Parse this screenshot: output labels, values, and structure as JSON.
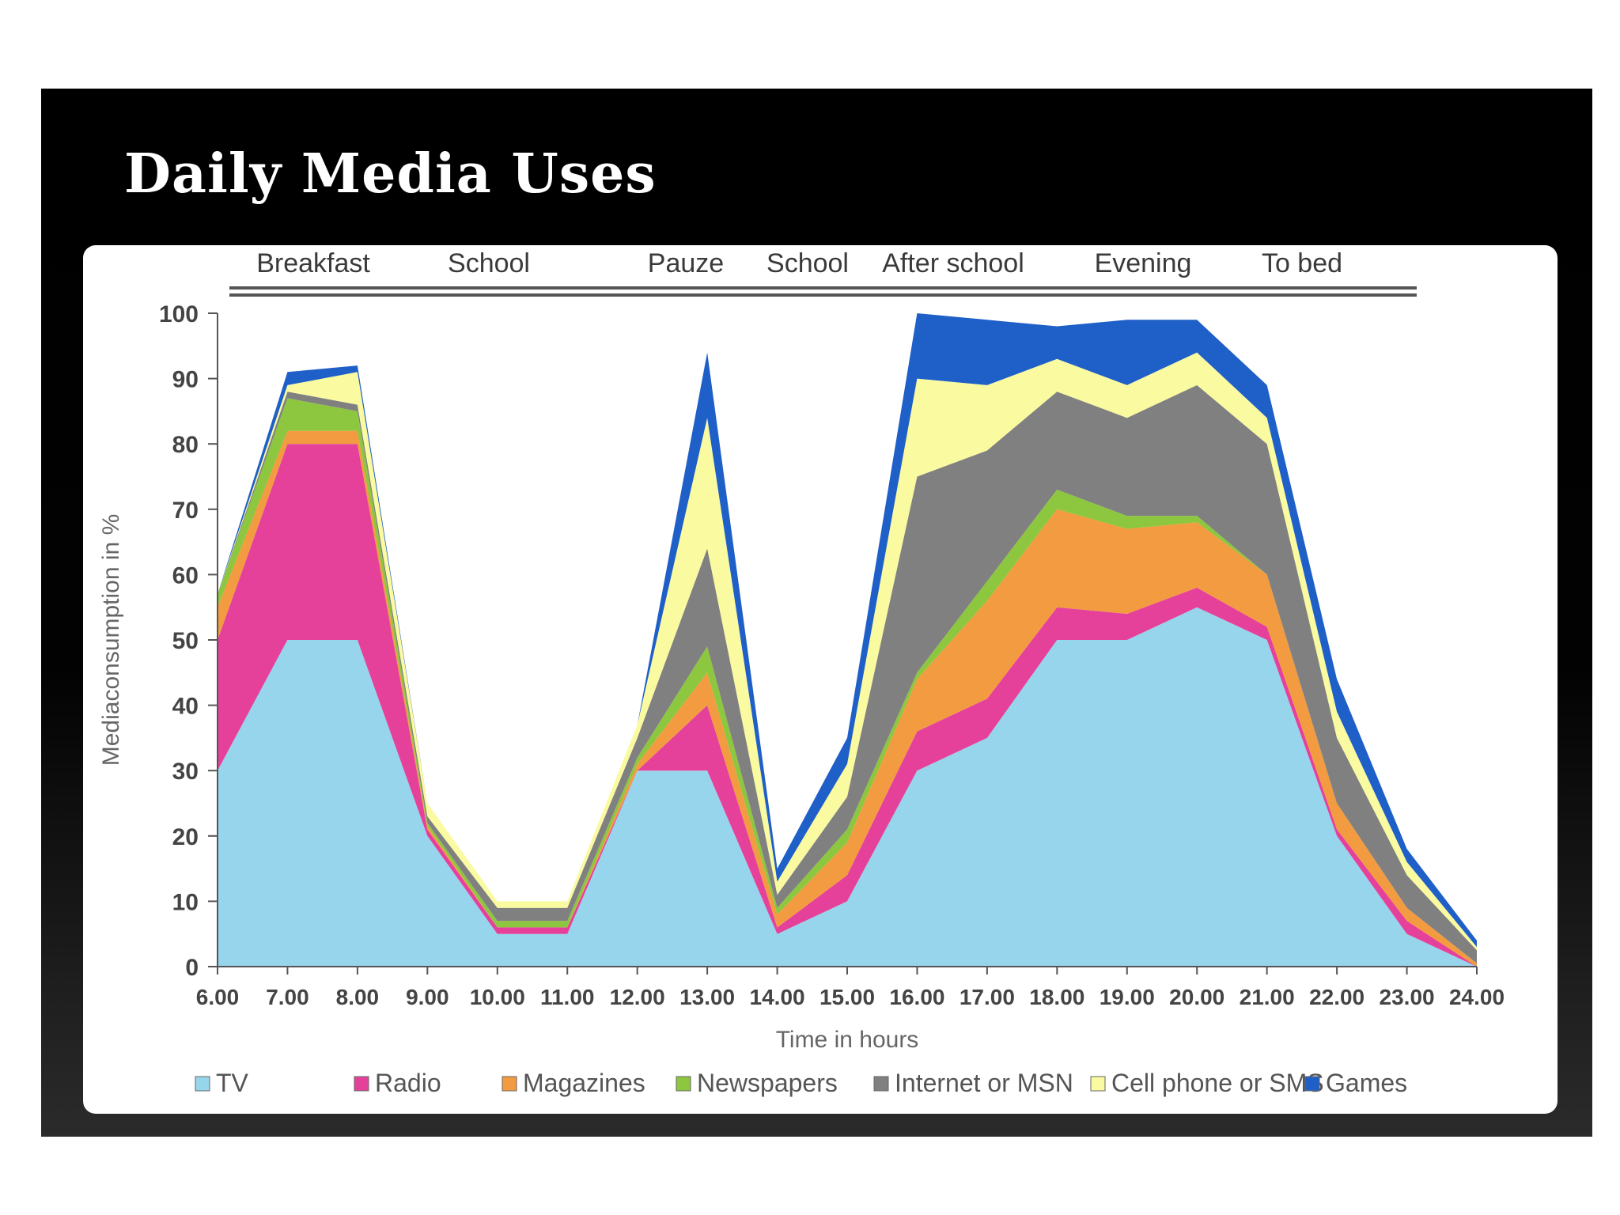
{
  "slide": {
    "title": "Daily Media Uses"
  },
  "colors": {
    "TV": "#97D5EC",
    "Radio": "#E5419A",
    "Magazines": "#F29B40",
    "Newspapers": "#8DC63F",
    "Internet or MSN": "#808080",
    "Cell phone or SMS": "#FAFAA0",
    "Games": "#1F5FC8"
  },
  "chart_data": {
    "type": "area",
    "stacked": true,
    "title": "",
    "xlabel": "Time in hours",
    "ylabel": "Mediaconsumption in %",
    "ylim": [
      0,
      100
    ],
    "yticks": [
      0,
      10,
      20,
      30,
      40,
      50,
      60,
      70,
      80,
      90,
      100
    ],
    "categories": [
      "6.00",
      "7.00",
      "8.00",
      "9.00",
      "10.00",
      "11.00",
      "12.00",
      "13.00",
      "14.00",
      "15.00",
      "16.00",
      "17.00",
      "18.00",
      "19.00",
      "20.00",
      "21.00",
      "22.00",
      "23.00",
      "24.00"
    ],
    "day_phases": [
      "Breakfast",
      "School",
      "Pauze",
      "School",
      "After school",
      "Evening",
      "To bed"
    ],
    "legend_position": "bottom",
    "series": [
      {
        "name": "TV",
        "values": [
          30,
          50,
          50,
          20,
          5,
          5,
          30,
          30,
          5,
          10,
          30,
          35,
          50,
          50,
          55,
          50,
          20,
          5,
          0
        ]
      },
      {
        "name": "Radio",
        "values": [
          20,
          30,
          30,
          1,
          1,
          1,
          0,
          10,
          1,
          4,
          6,
          6,
          5,
          4,
          3,
          2,
          1,
          2,
          0
        ]
      },
      {
        "name": "Magazines",
        "values": [
          5,
          2,
          2,
          0.5,
          0,
          0,
          1,
          5,
          2,
          5,
          8,
          15,
          15,
          13,
          10,
          8,
          4,
          2,
          0.5
        ]
      },
      {
        "name": "Newspapers",
        "values": [
          2,
          5,
          3,
          0.5,
          1,
          1,
          1,
          4,
          1,
          2,
          1,
          3,
          3,
          2,
          1,
          0,
          0,
          0,
          0
        ]
      },
      {
        "name": "Internet or MSN",
        "values": [
          0,
          1,
          1,
          1,
          2,
          2,
          3,
          15,
          2,
          5,
          30,
          20,
          15,
          15,
          20,
          20,
          10,
          5,
          2
        ]
      },
      {
        "name": "Cell phone or SMS",
        "values": [
          0,
          1,
          5,
          2,
          1,
          1,
          2,
          20,
          2,
          5,
          15,
          10,
          5,
          5,
          5,
          4,
          4,
          2,
          0.5
        ]
      },
      {
        "name": "Games",
        "values": [
          0,
          2,
          1,
          0,
          0,
          0,
          0,
          10,
          2,
          4,
          10,
          10,
          5,
          10,
          5,
          5,
          5,
          2,
          1
        ]
      }
    ]
  }
}
